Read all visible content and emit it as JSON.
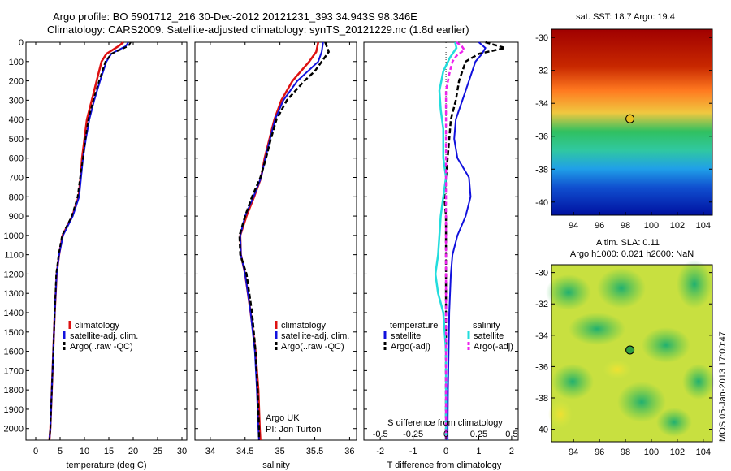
{
  "title_line1": "Argo profile: BO 5901712_216 30-Dec-2012 20121231_393 34.943S 98.346E",
  "title_line2": "Climatology: CARS2009. Satellite-adjusted climatology: synTS_20121229.nc (1.8d earlier)",
  "credit": "IMOS 05-Jan-2013 17:00:47",
  "depth_ticks": [
    0,
    100,
    200,
    300,
    400,
    500,
    600,
    700,
    800,
    900,
    1000,
    1100,
    1200,
    1300,
    1400,
    1500,
    1600,
    1700,
    1800,
    1900,
    2000
  ],
  "colors": {
    "climatology": "#dd1111",
    "satellite": "#1111dd",
    "argo": "#000000",
    "cyan": "#22dddd",
    "magenta": "#ee22ee"
  },
  "temp_panel": {
    "xlabel": "temperature (deg C)",
    "xticks": [
      0,
      5,
      10,
      15,
      20,
      25,
      30
    ],
    "legend": [
      "climatology",
      "satellite-adj. clim.",
      "Argo(..raw -QC)"
    ]
  },
  "sal_panel": {
    "xlabel": "salinity",
    "xticks": [
      "34",
      "34.5",
      "35",
      "35.5",
      "36"
    ],
    "legend": [
      "climatology",
      "satellite-adj. clim.",
      "Argo(..raw -QC)"
    ],
    "note1": "Argo UK",
    "note2": "PI: Jon Turton"
  },
  "diff_panel": {
    "xlabel": "T difference from climatology",
    "top_label": "S difference from climatology",
    "t_ticks": [
      "-2",
      "-1",
      "0",
      "1",
      "2"
    ],
    "s_ticks": [
      "-0.5",
      "-0.25",
      "0",
      "0.25",
      "0.5"
    ],
    "legend_temp_title": "temperature",
    "legend_sal_title": "salinity",
    "legend_satellite": "satellite",
    "legend_argo": "Argo(-adj)"
  },
  "sst_map": {
    "title": "sat. SST: 18.7 Argo: 19.4",
    "yticks": [
      "-30",
      "-32",
      "-34",
      "-36",
      "-38",
      "-40"
    ],
    "xticks": [
      "94",
      "96",
      "98",
      "100",
      "102",
      "104"
    ]
  },
  "sla_map": {
    "title1": "Altim. SLA: 0.11",
    "title2": "Argo h1000: 0.021 h2000: NaN",
    "yticks": [
      "-30",
      "-32",
      "-34",
      "-36",
      "-38",
      "-40"
    ],
    "xticks": [
      "94",
      "96",
      "98",
      "100",
      "102",
      "104"
    ]
  },
  "chart_data": [
    {
      "type": "line",
      "xlabel": "temperature (deg C)",
      "ylabel": "",
      "xlim": [
        -2,
        31
      ],
      "ylim": [
        2050,
        0
      ],
      "series": [
        {
          "name": "climatology",
          "points": [
            [
              18.0,
              0
            ],
            [
              17.0,
              20
            ],
            [
              14.5,
              60
            ],
            [
              13.5,
              100
            ],
            [
              12.5,
              200
            ],
            [
              11.5,
              300
            ],
            [
              10.5,
              400
            ],
            [
              10.0,
              500
            ],
            [
              9.5,
              600
            ],
            [
              9.2,
              700
            ],
            [
              8.8,
              800
            ],
            [
              7.5,
              900
            ],
            [
              5.5,
              1000
            ],
            [
              4.8,
              1100
            ],
            [
              4.3,
              1200
            ],
            [
              3.9,
              1400
            ],
            [
              3.6,
              1600
            ],
            [
              3.3,
              1800
            ],
            [
              3.0,
              2000
            ],
            [
              2.8,
              2060
            ]
          ]
        },
        {
          "name": "satellite-adj. clim.",
          "points": [
            [
              19.0,
              0
            ],
            [
              18.5,
              20
            ],
            [
              15.5,
              60
            ],
            [
              14.5,
              100
            ],
            [
              13.2,
              200
            ],
            [
              12.0,
              300
            ],
            [
              11.0,
              400
            ],
            [
              10.3,
              500
            ],
            [
              9.7,
              600
            ],
            [
              9.3,
              700
            ],
            [
              8.9,
              800
            ],
            [
              7.6,
              900
            ],
            [
              5.6,
              1000
            ],
            [
              4.8,
              1100
            ],
            [
              4.3,
              1200
            ],
            [
              3.9,
              1400
            ],
            [
              3.6,
              1600
            ],
            [
              3.3,
              1800
            ],
            [
              3.0,
              2000
            ],
            [
              2.8,
              2060
            ]
          ]
        },
        {
          "name": "Argo(..raw -QC)",
          "points": [
            [
              19.5,
              0
            ],
            [
              19.0,
              20
            ],
            [
              15.5,
              60
            ],
            [
              14.3,
              100
            ],
            [
              13.0,
              200
            ],
            [
              11.8,
              300
            ],
            [
              10.8,
              400
            ],
            [
              10.2,
              500
            ],
            [
              9.7,
              600
            ],
            [
              9.1,
              700
            ],
            [
              8.6,
              800
            ],
            [
              7.4,
              900
            ],
            [
              5.4,
              1000
            ],
            [
              4.7,
              1100
            ],
            [
              4.2,
              1200
            ],
            [
              3.9,
              1400
            ],
            [
              3.6,
              1600
            ],
            [
              3.3,
              1800
            ],
            [
              3.0,
              2000
            ],
            [
              2.8,
              2060
            ]
          ]
        }
      ]
    },
    {
      "type": "line",
      "xlabel": "salinity",
      "ylabel": "",
      "xlim": [
        33.78,
        36.1
      ],
      "ylim": [
        2050,
        0
      ],
      "series": [
        {
          "name": "climatology",
          "points": [
            [
              35.55,
              0
            ],
            [
              35.52,
              50
            ],
            [
              35.42,
              100
            ],
            [
              35.3,
              150
            ],
            [
              35.18,
              200
            ],
            [
              35.02,
              300
            ],
            [
              34.92,
              400
            ],
            [
              34.85,
              500
            ],
            [
              34.78,
              600
            ],
            [
              34.73,
              700
            ],
            [
              34.63,
              800
            ],
            [
              34.52,
              900
            ],
            [
              34.43,
              1000
            ],
            [
              34.44,
              1100
            ],
            [
              34.5,
              1200
            ],
            [
              34.58,
              1400
            ],
            [
              34.65,
              1600
            ],
            [
              34.69,
              1800
            ],
            [
              34.71,
              2000
            ],
            [
              34.72,
              2060
            ]
          ]
        },
        {
          "name": "satellite-adj. clim.",
          "points": [
            [
              35.62,
              0
            ],
            [
              35.6,
              50
            ],
            [
              35.55,
              100
            ],
            [
              35.4,
              150
            ],
            [
              35.25,
              200
            ],
            [
              35.05,
              300
            ],
            [
              34.93,
              400
            ],
            [
              34.86,
              500
            ],
            [
              34.79,
              600
            ],
            [
              34.73,
              700
            ],
            [
              34.62,
              800
            ],
            [
              34.5,
              900
            ],
            [
              34.43,
              1000
            ],
            [
              34.44,
              1100
            ],
            [
              34.5,
              1200
            ],
            [
              34.58,
              1400
            ],
            [
              34.64,
              1600
            ],
            [
              34.67,
              1800
            ],
            [
              34.69,
              2000
            ],
            [
              34.7,
              2060
            ]
          ]
        },
        {
          "name": "Argo(..raw -QC)",
          "points": [
            [
              35.65,
              0
            ],
            [
              35.7,
              50
            ],
            [
              35.6,
              100
            ],
            [
              35.5,
              150
            ],
            [
              35.35,
              200
            ],
            [
              35.1,
              300
            ],
            [
              34.95,
              400
            ],
            [
              34.87,
              500
            ],
            [
              34.8,
              600
            ],
            [
              34.72,
              700
            ],
            [
              34.6,
              800
            ],
            [
              34.5,
              900
            ],
            [
              34.42,
              1000
            ],
            [
              34.43,
              1100
            ],
            [
              34.52,
              1200
            ],
            [
              34.6,
              1400
            ],
            [
              34.65,
              1600
            ],
            [
              34.68,
              1800
            ],
            [
              34.7,
              2000
            ],
            [
              34.7,
              2060
            ]
          ]
        }
      ]
    },
    {
      "type": "line",
      "xlabel": "T difference from climatology",
      "ylabel": "",
      "xlim": [
        -2.5,
        2.2
      ],
      "ylim": [
        2050,
        0
      ],
      "series": [
        {
          "name": "temperature satellite",
          "points": [
            [
              1.0,
              0
            ],
            [
              1.2,
              30
            ],
            [
              1.1,
              60
            ],
            [
              0.9,
              100
            ],
            [
              0.7,
              200
            ],
            [
              0.5,
              300
            ],
            [
              0.3,
              400
            ],
            [
              0.25,
              500
            ],
            [
              0.35,
              600
            ],
            [
              0.7,
              700
            ],
            [
              0.75,
              800
            ],
            [
              0.6,
              900
            ],
            [
              0.35,
              1000
            ],
            [
              0.2,
              1100
            ],
            [
              0.15,
              1200
            ],
            [
              0.1,
              1400
            ],
            [
              0.08,
              1600
            ],
            [
              0.06,
              1800
            ],
            [
              0.05,
              2000
            ],
            [
              0.05,
              2060
            ]
          ]
        },
        {
          "name": "temperature Argo(-adj)",
          "points": [
            [
              1.2,
              0
            ],
            [
              1.8,
              30
            ],
            [
              1.0,
              60
            ],
            [
              0.6,
              100
            ],
            [
              0.4,
              200
            ],
            [
              0.3,
              300
            ],
            [
              0.15,
              400
            ],
            [
              0.1,
              500
            ],
            [
              0.05,
              600
            ],
            [
              0.0,
              700
            ],
            [
              -0.05,
              800
            ],
            [
              0.0,
              900
            ],
            [
              0.0,
              1000
            ],
            [
              0.0,
              1100
            ],
            [
              0.0,
              1200
            ],
            [
              0.0,
              1400
            ],
            [
              0.0,
              1600
            ],
            [
              0.0,
              1800
            ],
            [
              0.0,
              2000
            ],
            [
              0.0,
              2060
            ]
          ]
        },
        {
          "name": "salinity satellite",
          "points": [
            [
              0.07,
              0
            ],
            [
              0.08,
              30
            ],
            [
              0.03,
              80
            ],
            [
              -0.02,
              150
            ],
            [
              -0.05,
              250
            ],
            [
              -0.04,
              350
            ],
            [
              -0.02,
              450
            ],
            [
              -0.02,
              600
            ],
            [
              0.0,
              700
            ],
            [
              -0.02,
              800
            ],
            [
              -0.04,
              900
            ],
            [
              -0.05,
              1000
            ],
            [
              -0.06,
              1100
            ],
            [
              -0.08,
              1200
            ],
            [
              -0.06,
              1300
            ],
            [
              -0.02,
              1400
            ],
            [
              0.0,
              1600
            ],
            [
              0.0,
              1800
            ],
            [
              0.0,
              2000
            ],
            [
              0.0,
              2060
            ]
          ]
        },
        {
          "name": "salinity Argo(-adj)",
          "points": [
            [
              0.08,
              0
            ],
            [
              0.12,
              20
            ],
            [
              0.14,
              40
            ],
            [
              0.08,
              70
            ],
            [
              0.05,
              100
            ],
            [
              0.03,
              150
            ],
            [
              0.0,
              250
            ],
            [
              0.0,
              400
            ],
            [
              0.0,
              800
            ],
            [
              0.0,
              1200
            ],
            [
              0.0,
              2060
            ]
          ]
        }
      ]
    },
    {
      "type": "heatmap",
      "title": "sat. SST: 18.7 Argo: 19.4",
      "xlim": [
        92.3,
        104.7
      ],
      "ylim": [
        -40.8,
        -29.5
      ],
      "argo_position": [
        98.35,
        -34.94
      ]
    },
    {
      "type": "heatmap",
      "title": "Altim. SLA: 0.11",
      "xlim": [
        92.3,
        104.7
      ],
      "ylim": [
        -40.8,
        -29.5
      ],
      "argo_position": [
        98.35,
        -34.94
      ]
    }
  ]
}
